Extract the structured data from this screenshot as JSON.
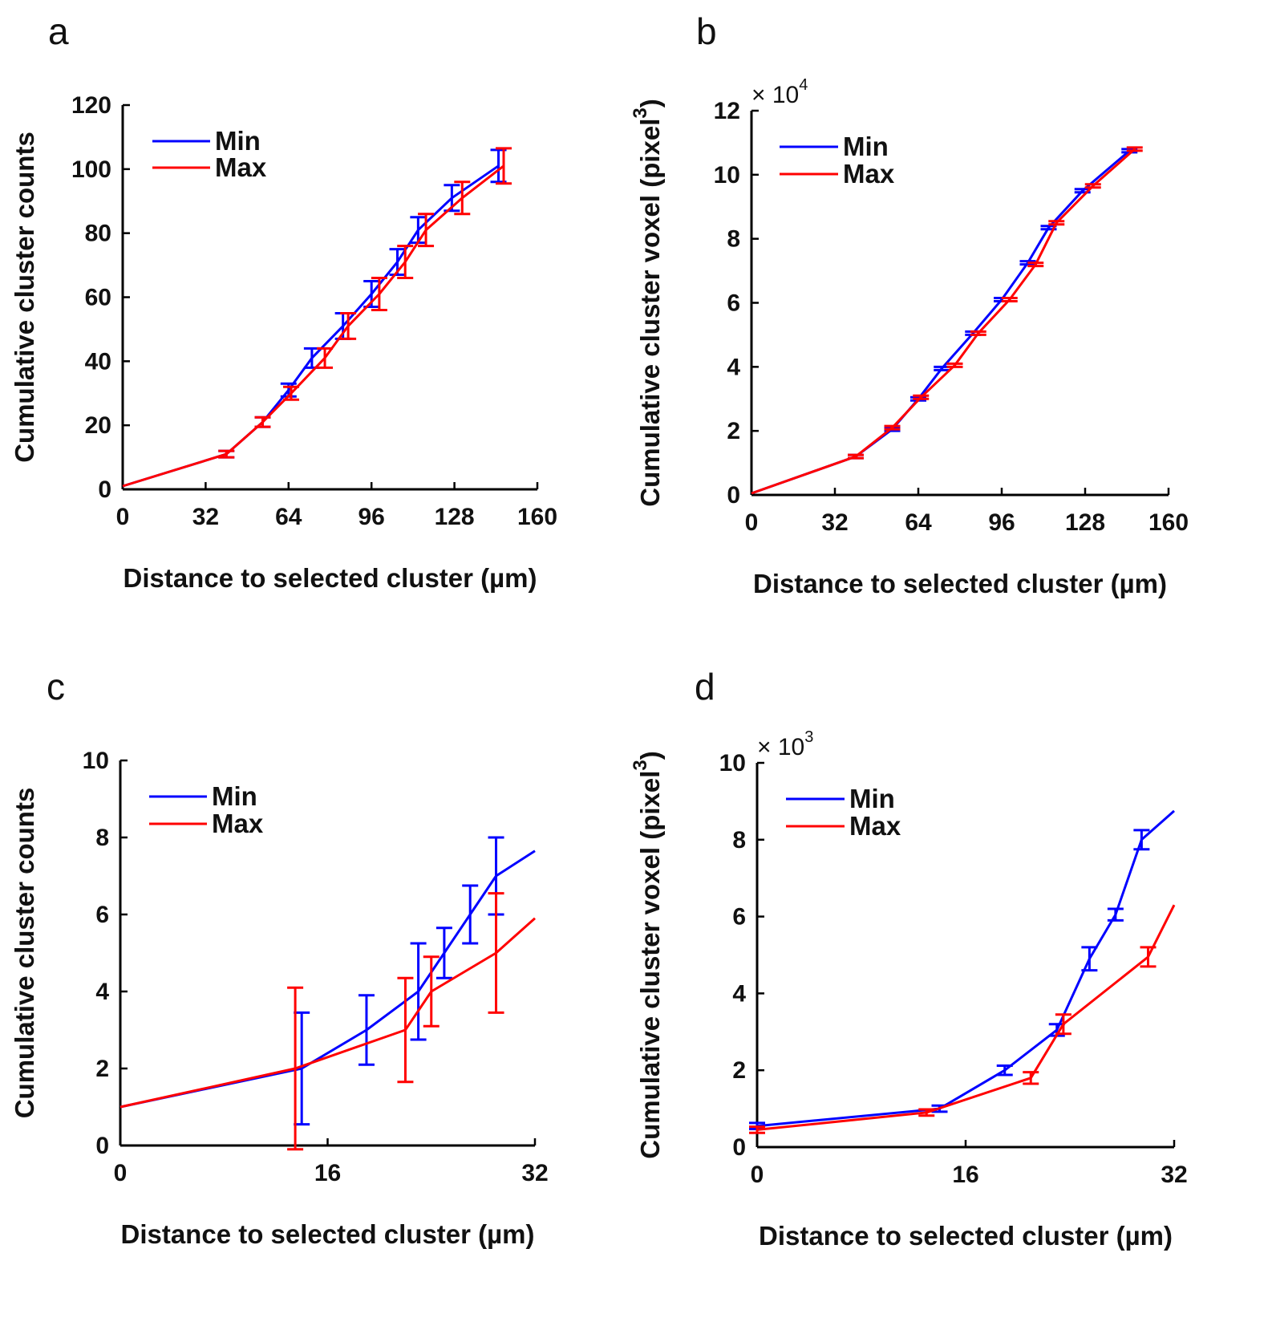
{
  "chart_data": [
    {
      "panel": "a",
      "type": "line",
      "xlabel": "Distance to selected cluster (µm)",
      "ylabel": "Cumulative cluster counts",
      "xlim": [
        0,
        160
      ],
      "ylim": [
        0,
        120
      ],
      "xticks": [
        "0",
        "32",
        "64",
        "96",
        "128",
        "160"
      ],
      "yticks": [
        "0",
        "20",
        "40",
        "60",
        "80",
        "100",
        "120"
      ],
      "multiplier": null,
      "legend": "top-left",
      "grid": false,
      "series": [
        {
          "name": "Min",
          "color": "#0000ff",
          "x": [
            0,
            40,
            54,
            64,
            73,
            85,
            96,
            106,
            114,
            127,
            145
          ],
          "y": [
            1,
            11,
            21,
            31,
            41,
            51,
            61,
            71,
            81,
            91,
            101
          ],
          "err": [
            0,
            1,
            1.5,
            2,
            3,
            4,
            4,
            4,
            4,
            4,
            5
          ],
          "err_idx": [
            1,
            2,
            3,
            4,
            5,
            6,
            7,
            8,
            9,
            10
          ]
        },
        {
          "name": "Max",
          "color": "#ff0000",
          "x": [
            0,
            40,
            54,
            65,
            78,
            87,
            99,
            109,
            117,
            131,
            147
          ],
          "y": [
            1,
            11,
            21,
            30,
            41,
            51,
            61,
            71,
            81,
            91,
            101
          ],
          "err": [
            0,
            1,
            1.5,
            2,
            3,
            4,
            5,
            5,
            5,
            5,
            5.5
          ],
          "err_idx": [
            1,
            2,
            3,
            4,
            5,
            6,
            7,
            8,
            9,
            10
          ]
        }
      ]
    },
    {
      "panel": "b",
      "type": "line",
      "xlabel": "Distance to selected cluster (µm)",
      "ylabel": "Cumulative cluster voxel (pixel",
      "ylabel_sup": "3",
      "ylabel_end": ")",
      "xlim": [
        0,
        160
      ],
      "ylim": [
        0,
        12
      ],
      "xticks": [
        "0",
        "32",
        "64",
        "96",
        "128",
        "160"
      ],
      "yticks": [
        "0",
        "2",
        "4",
        "6",
        "8",
        "10",
        "12"
      ],
      "multiplier": {
        "base": "× 10",
        "exp": "4"
      },
      "legend": "top-left",
      "grid": false,
      "series": [
        {
          "name": "Min",
          "color": "#0000ff",
          "x": [
            0,
            40,
            54,
            64,
            73,
            85,
            96,
            106,
            114,
            127,
            145
          ],
          "y": [
            0.05,
            1.2,
            2.05,
            3.0,
            3.95,
            5.05,
            6.1,
            7.25,
            8.35,
            9.5,
            10.75
          ],
          "err": [
            0,
            0.05,
            0.05,
            0.05,
            0.05,
            0.05,
            0.05,
            0.05,
            0.05,
            0.05,
            0.05
          ],
          "err_idx": [
            1,
            2,
            3,
            4,
            5,
            6,
            7,
            8,
            9,
            10
          ]
        },
        {
          "name": "Max",
          "color": "#ff0000",
          "x": [
            0,
            40,
            54,
            65,
            78,
            87,
            99,
            109,
            117,
            131,
            147
          ],
          "y": [
            0.05,
            1.2,
            2.1,
            3.05,
            4.05,
            5.05,
            6.1,
            7.2,
            8.5,
            9.65,
            10.8
          ],
          "err": [
            0,
            0.05,
            0.05,
            0.05,
            0.05,
            0.05,
            0.05,
            0.05,
            0.05,
            0.05,
            0.05
          ],
          "err_idx": [
            1,
            2,
            3,
            4,
            5,
            6,
            7,
            8,
            9,
            10
          ]
        }
      ]
    },
    {
      "panel": "c",
      "type": "line",
      "xlabel": "Distance to selected cluster (µm)",
      "ylabel": "Cumulative cluster counts",
      "xlim": [
        0,
        32
      ],
      "ylim": [
        0,
        10
      ],
      "xticks": [
        "0",
        "16",
        "32"
      ],
      "yticks": [
        "0",
        "2",
        "4",
        "6",
        "8",
        "10"
      ],
      "multiplier": null,
      "legend": "top-left",
      "grid": false,
      "series": [
        {
          "name": "Min",
          "color": "#0000ff",
          "x": [
            0,
            14,
            19,
            23,
            25,
            27,
            29,
            32
          ],
          "y": [
            1,
            2,
            3,
            4,
            5,
            6,
            7,
            7.65
          ],
          "err": [
            0,
            1.45,
            0.9,
            1.25,
            0.65,
            0.75,
            1.0,
            0
          ],
          "err_idx": [
            1,
            2,
            3,
            4,
            5,
            6
          ]
        },
        {
          "name": "Max",
          "color": "#ff0000",
          "x": [
            0,
            13.5,
            22,
            24,
            29,
            32
          ],
          "y": [
            1,
            2,
            3,
            4,
            5,
            5.9
          ],
          "err": [
            0,
            2.1,
            1.35,
            0.9,
            1.55,
            0
          ],
          "err_idx": [
            1,
            2,
            3,
            4
          ]
        }
      ]
    },
    {
      "panel": "d",
      "type": "line",
      "xlabel": "Distance to selected cluster (µm)",
      "ylabel": "Cumulative cluster voxel (pixel",
      "ylabel_sup": "3",
      "ylabel_end": ")",
      "xlim": [
        0,
        32
      ],
      "ylim": [
        0,
        10
      ],
      "xticks": [
        "0",
        "16",
        "32"
      ],
      "yticks": [
        "0",
        "2",
        "4",
        "6",
        "8",
        "10"
      ],
      "multiplier": {
        "base": "× 10",
        "exp": "3"
      },
      "legend": "top-left",
      "grid": false,
      "series": [
        {
          "name": "Min",
          "color": "#0000ff",
          "x": [
            0,
            14,
            19,
            23,
            25.5,
            27.5,
            29.5,
            32
          ],
          "y": [
            0.55,
            1.0,
            2.0,
            3.05,
            4.9,
            6.05,
            8.0,
            8.75
          ],
          "err": [
            0.08,
            0.08,
            0.12,
            0.15,
            0.3,
            0.15,
            0.25,
            0
          ],
          "err_idx": [
            0,
            1,
            2,
            3,
            4,
            5,
            6
          ]
        },
        {
          "name": "Max",
          "color": "#ff0000",
          "x": [
            0,
            13,
            21,
            23.5,
            30,
            32
          ],
          "y": [
            0.45,
            0.9,
            1.8,
            3.2,
            4.95,
            6.3
          ],
          "err": [
            0.08,
            0.08,
            0.15,
            0.25,
            0.25,
            0
          ],
          "err_idx": [
            0,
            1,
            2,
            3,
            4
          ]
        }
      ]
    }
  ]
}
